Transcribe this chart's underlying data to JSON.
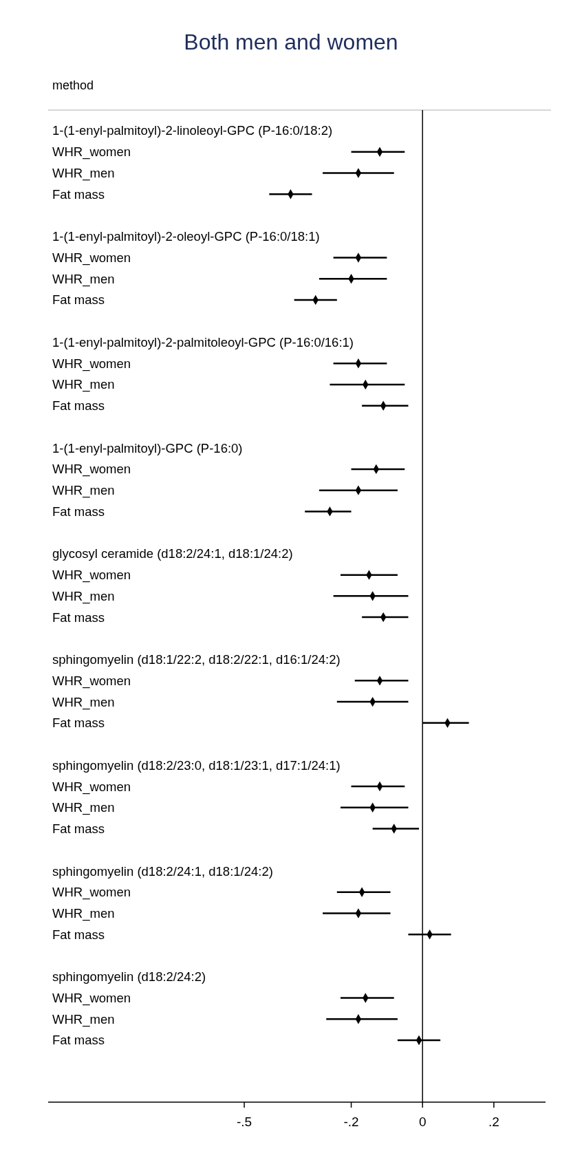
{
  "chart_data": {
    "type": "scatter",
    "title": "Both men and women",
    "ylabel": "method",
    "orientation": "horizontal",
    "marker": "diamond",
    "color": "#000000",
    "categories": [
      "1-(1-enyl-palmitoyl)-2-linoleoyl-GPC (P-16:0/18:2)",
      "WHR_women",
      "WHR_men",
      "Fat mass",
      null,
      "1-(1-enyl-palmitoyl)-2-oleoyl-GPC (P-16:0/18:1)",
      "WHR_women",
      "WHR_men",
      "Fat mass",
      null,
      "1-(1-enyl-palmitoyl)-2-palmitoleoyl-GPC (P-16:0/16:1)",
      "WHR_women",
      "WHR_men",
      "Fat mass",
      null,
      "1-(1-enyl-palmitoyl)-GPC (P-16:0)",
      "WHR_women",
      "WHR_men",
      "Fat mass",
      null,
      "glycosyl ceramide (d18:2/24:1, d18:1/24:2)",
      "WHR_women",
      "WHR_men",
      "Fat mass",
      null,
      "sphingomyelin (d18:1/22:2, d18:2/22:1, d16:1/24:2)",
      "WHR_women",
      "WHR_men",
      "Fat mass",
      null,
      "sphingomyelin (d18:2/23:0, d18:1/23:1, d17:1/24:1)",
      "WHR_women",
      "WHR_men",
      "Fat mass",
      null,
      "sphingomyelin (d18:2/24:1, d18:1/24:2)",
      "WHR_women",
      "WHR_men",
      "Fat mass",
      null,
      "sphingomyelin (d18:2/24:2)",
      "WHR_women",
      "WHR_men",
      "Fat mass"
    ],
    "values": [
      null,
      -0.12,
      -0.18,
      -0.37,
      null,
      null,
      -0.18,
      -0.2,
      -0.3,
      null,
      null,
      -0.18,
      -0.16,
      -0.11,
      null,
      null,
      -0.13,
      -0.18,
      -0.26,
      null,
      null,
      -0.15,
      -0.14,
      -0.11,
      null,
      null,
      -0.12,
      -0.14,
      0.07,
      null,
      null,
      -0.12,
      -0.14,
      -0.08,
      null,
      null,
      -0.17,
      -0.18,
      0.02,
      null,
      null,
      -0.16,
      -0.18,
      -0.01
    ],
    "errors": [
      null,
      [
        -0.2,
        -0.05
      ],
      [
        -0.28,
        -0.08
      ],
      [
        -0.43,
        -0.31
      ],
      null,
      null,
      [
        -0.25,
        -0.1
      ],
      [
        -0.29,
        -0.1
      ],
      [
        -0.36,
        -0.24
      ],
      null,
      null,
      [
        -0.25,
        -0.1
      ],
      [
        -0.26,
        -0.05
      ],
      [
        -0.17,
        -0.04
      ],
      null,
      null,
      [
        -0.2,
        -0.05
      ],
      [
        -0.29,
        -0.07
      ],
      [
        -0.33,
        -0.2
      ],
      null,
      null,
      [
        -0.23,
        -0.07
      ],
      [
        -0.25,
        -0.04
      ],
      [
        -0.17,
        -0.04
      ],
      null,
      null,
      [
        -0.19,
        -0.04
      ],
      [
        -0.24,
        -0.04
      ],
      [
        0,
        0.13
      ],
      null,
      null,
      [
        -0.2,
        -0.05
      ],
      [
        -0.23,
        -0.04
      ],
      [
        -0.14,
        -0.01
      ],
      null,
      null,
      [
        -0.24,
        -0.09
      ],
      [
        -0.28,
        -0.09
      ],
      [
        -0.04,
        0.08
      ],
      null,
      null,
      [
        -0.23,
        -0.08
      ],
      [
        -0.27,
        -0.07
      ],
      [
        -0.07,
        0.05
      ]
    ],
    "xlim": [
      -1.05,
      0.345
    ],
    "xticks": [
      {
        "value": -0.5,
        "label": "-.5"
      },
      {
        "value": -0.2,
        "label": "-.2"
      },
      0,
      {
        "value": 0.2,
        "label": ".2"
      }
    ],
    "ref_lines": [
      {
        "axis": "x",
        "value": 0,
        "color": "#000000"
      }
    ]
  }
}
